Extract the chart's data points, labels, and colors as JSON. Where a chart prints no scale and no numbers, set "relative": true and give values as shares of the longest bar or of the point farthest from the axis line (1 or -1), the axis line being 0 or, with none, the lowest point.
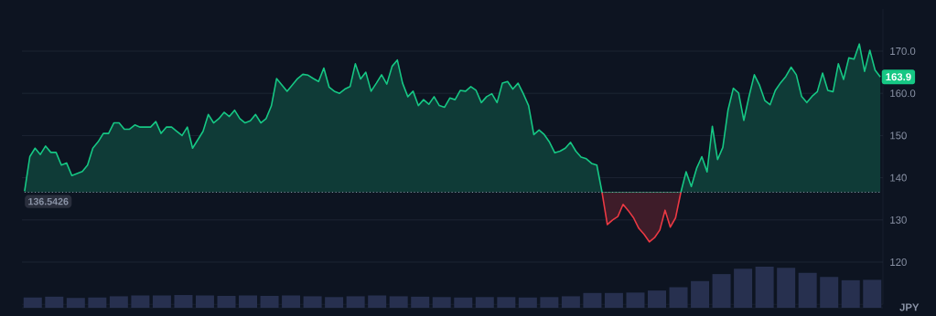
{
  "chart_data": [
    {
      "type": "line",
      "ylabel": "JPY",
      "grid": "y",
      "categories": [
        null,
        null,
        null,
        null,
        null,
        null,
        null,
        null,
        null,
        null,
        null,
        null,
        null,
        null,
        null,
        null,
        null,
        null,
        null,
        null,
        null,
        null,
        null,
        null,
        null,
        null,
        null,
        null,
        null,
        null,
        null,
        null,
        null,
        null,
        null,
        null,
        null,
        null,
        null,
        null,
        null,
        null,
        null,
        null,
        null,
        null,
        null,
        null,
        null,
        null,
        null,
        null,
        null,
        null,
        null,
        null,
        null,
        null,
        null,
        null,
        null,
        null,
        null,
        null,
        null,
        null,
        null,
        null,
        null,
        null,
        null,
        null,
        null,
        null,
        null,
        null,
        null,
        null,
        null,
        null,
        null,
        null,
        null,
        null,
        null,
        null,
        null,
        null,
        null,
        null,
        null,
        null,
        null,
        null,
        null,
        null,
        null,
        null,
        null,
        null,
        null,
        null,
        null,
        null,
        null,
        null,
        null,
        null,
        null,
        null,
        null,
        null,
        null,
        null,
        null,
        null,
        null,
        null,
        null,
        null,
        null,
        null,
        null,
        null,
        null,
        null,
        null,
        null,
        null,
        null,
        null,
        null,
        null,
        null,
        null,
        null,
        null,
        null,
        null,
        null,
        null,
        null,
        null,
        null,
        null,
        null,
        null,
        null,
        null,
        null,
        null,
        null,
        null,
        null,
        null,
        null,
        null,
        null,
        null,
        null,
        null,
        null,
        null,
        null
      ],
      "series": [
        {
          "color": "#16c784",
          "values": [
            136.8,
            145,
            147,
            145.5,
            147.5,
            146,
            146,
            143,
            143.5,
            140.5,
            141,
            141.5,
            143,
            147,
            148.5,
            150.5,
            150.5,
            153,
            153,
            151.5,
            151.5,
            152.5,
            152,
            152,
            152,
            153.3,
            150.5,
            152,
            152,
            151,
            150,
            152,
            147,
            149,
            151,
            155,
            153,
            154,
            155.5,
            154.5,
            156,
            154,
            153,
            153.5,
            155,
            153,
            154,
            157,
            163.5,
            162,
            160.5,
            162,
            163.5,
            164.5,
            164.3,
            163.5,
            162.8,
            166,
            161.5,
            160.5,
            160,
            161,
            161.6,
            167,
            163.4,
            165,
            160.5,
            162.4,
            164.4,
            162.2,
            166.4,
            167.9,
            162.4,
            159.2,
            160.5,
            157.1,
            158.5,
            157.4,
            159.2,
            157.1,
            156.7,
            158.9,
            158.5,
            160.7,
            160.5,
            161.6,
            160.7,
            157.8,
            159.2,
            159.9,
            157.8,
            162.4,
            162.8,
            161,
            162.4,
            159.9,
            157.1,
            150.2,
            151.3,
            150.2,
            148.4,
            145.9,
            146.3,
            147,
            148.4,
            146.3,
            144.9,
            144.5,
            143.4,
            143,
            136.5,
            null,
            null,
            null,
            null,
            null,
            null,
            null,
            null,
            null,
            null,
            null,
            null,
            null,
            null,
            136.5,
            141.4,
            137.9,
            142.2,
            145,
            141.4,
            152.2,
            144.3,
            147.2,
            156.1,
            161.2,
            160.1,
            153.6,
            159.3,
            164.4,
            161.9,
            158.3,
            157.3,
            160.7,
            162.5,
            164,
            166.2,
            164.4,
            159.3,
            157.8,
            159.3,
            160.4,
            164.8,
            160.7,
            160.4,
            167,
            163.3,
            168.4,
            168.1,
            171.7,
            165.2,
            170.2,
            165.5,
            163.9
          ]
        },
        {
          "color": "#ea3943",
          "values": [
            null,
            null,
            null,
            null,
            null,
            null,
            null,
            null,
            null,
            null,
            null,
            null,
            null,
            null,
            null,
            null,
            null,
            null,
            null,
            null,
            null,
            null,
            null,
            null,
            null,
            null,
            null,
            null,
            null,
            null,
            null,
            null,
            null,
            null,
            null,
            null,
            null,
            null,
            null,
            null,
            null,
            null,
            null,
            null,
            null,
            null,
            null,
            null,
            null,
            null,
            null,
            null,
            null,
            null,
            null,
            null,
            null,
            null,
            null,
            null,
            null,
            null,
            null,
            null,
            null,
            null,
            null,
            null,
            null,
            null,
            null,
            null,
            null,
            null,
            null,
            null,
            null,
            null,
            null,
            null,
            null,
            null,
            null,
            null,
            null,
            null,
            null,
            null,
            null,
            null,
            null,
            null,
            null,
            null,
            null,
            null,
            null,
            null,
            null,
            null,
            null,
            null,
            null,
            null,
            null,
            null,
            null,
            null,
            null,
            null,
            136.5,
            128.9,
            130,
            130.8,
            133.7,
            132.2,
            130.5,
            128,
            126.6,
            124.8,
            125.8,
            127.6,
            132.3,
            128.3,
            130.5,
            136.5,
            null,
            null,
            null,
            null,
            null,
            null,
            null,
            null,
            null,
            null,
            null,
            null,
            null,
            null,
            null,
            null,
            null,
            null,
            null,
            null,
            null,
            null,
            null,
            null,
            null,
            null,
            null,
            null,
            null,
            null,
            null,
            null,
            null,
            null,
            null,
            null,
            null,
            null
          ]
        }
      ],
      "ylim": [
        110,
        180
      ],
      "yticks": [
        120,
        130,
        140,
        150,
        {
          "value": 160,
          "label": "160.0"
        },
        {
          "value": 170,
          "label": "170.0"
        }
      ],
      "ref_lines": [
        {
          "axis": "y",
          "value": 136.5426,
          "label": "136.5426",
          "color": "#8a93a6",
          "line_style": "dotted"
        }
      ],
      "annotations": [
        "163.9"
      ]
    },
    {
      "type": "bar",
      "relative": true,
      "color": "#27304f",
      "categories": [
        null,
        null,
        null,
        null,
        null,
        null,
        null,
        null,
        null,
        null,
        null,
        null,
        null,
        null,
        null,
        null,
        null,
        null,
        null,
        null,
        null,
        null,
        null,
        null,
        null,
        null,
        null,
        null,
        null,
        null,
        null,
        null,
        null,
        null,
        null,
        null,
        null,
        null,
        null,
        null
      ],
      "values": [
        0.25,
        0.27,
        0.24,
        0.25,
        0.28,
        0.3,
        0.3,
        0.31,
        0.3,
        0.29,
        0.3,
        0.29,
        0.3,
        0.28,
        0.26,
        0.28,
        0.3,
        0.28,
        0.27,
        0.26,
        0.25,
        0.26,
        0.26,
        0.25,
        0.26,
        0.28,
        0.36,
        0.36,
        0.37,
        0.42,
        0.5,
        0.65,
        0.82,
        0.95,
        1.0,
        0.97,
        0.85,
        0.75,
        0.67,
        0.68
      ]
    }
  ]
}
